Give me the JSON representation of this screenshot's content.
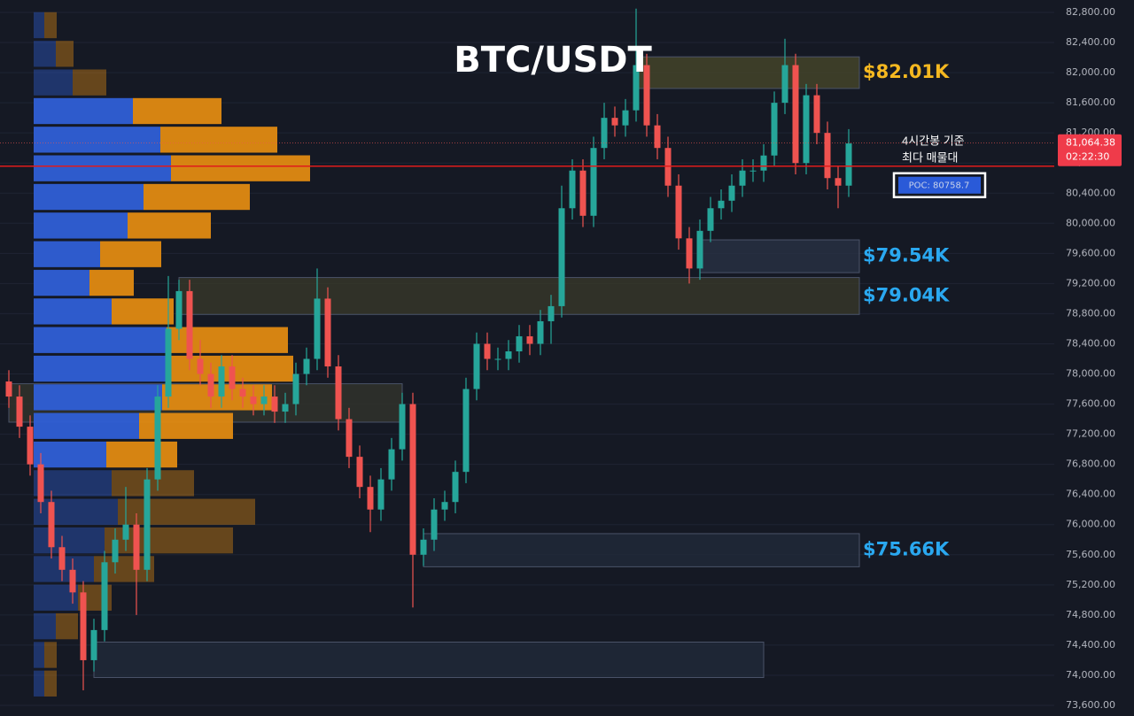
{
  "chart_data": {
    "type": "candlestick",
    "title": "BTC/USDT",
    "ylim": [
      73600,
      82800
    ],
    "yticks": [
      {
        "value": 82800,
        "label": "82,800.00"
      },
      {
        "value": 82400,
        "label": "82,400.00"
      },
      {
        "value": 82000,
        "label": "82,000.00"
      },
      {
        "value": 81600,
        "label": "81,600.00"
      },
      {
        "value": 81200,
        "label": "81,200.00"
      },
      {
        "value": 80800,
        "label": "80,800.00"
      },
      {
        "value": 80400,
        "label": "80,400.00"
      },
      {
        "value": 80000,
        "label": "80,000.00"
      },
      {
        "value": 79600,
        "label": "79,600.00"
      },
      {
        "value": 79200,
        "label": "79,200.00"
      },
      {
        "value": 78800,
        "label": "78,800.00"
      },
      {
        "value": 78400,
        "label": "78,400.00"
      },
      {
        "value": 78000,
        "label": "78,000.00"
      },
      {
        "value": 77600,
        "label": "77,600.00"
      },
      {
        "value": 77200,
        "label": "77,200.00"
      },
      {
        "value": 76800,
        "label": "76,800.00"
      },
      {
        "value": 76400,
        "label": "76,400.00"
      },
      {
        "value": 76000,
        "label": "76,000.00"
      },
      {
        "value": 75600,
        "label": "75,600.00"
      },
      {
        "value": 75200,
        "label": "75,200.00"
      },
      {
        "value": 74800,
        "label": "74,800.00"
      },
      {
        "value": 74400,
        "label": "74,400.00"
      },
      {
        "value": 74000,
        "label": "74,000.00"
      },
      {
        "value": 73600,
        "label": "73,600.00"
      }
    ],
    "grid": true,
    "up_color": "#26a69a",
    "down_color": "#ef5350",
    "open": [
      77900,
      77700,
      77300,
      76800,
      76300,
      75700,
      75400,
      75100,
      74200,
      74600,
      75500,
      75800,
      76000,
      75400,
      76600,
      77700,
      78600,
      79100,
      78200,
      78000,
      77700,
      78100,
      77800,
      77700,
      77600,
      77700,
      77500,
      77600,
      78000,
      78200,
      79000,
      78100,
      77400,
      76900,
      76500,
      76200,
      76600,
      77000,
      77600,
      75600,
      75800,
      76200,
      76300,
      76700,
      77800,
      78400,
      78200,
      78200,
      78300,
      78500,
      78400,
      78700,
      78900,
      80200,
      80700,
      80100,
      81000,
      81400,
      81300,
      81500,
      82100,
      81300,
      81000,
      80500,
      79800,
      79400,
      79900,
      80200,
      80300,
      80500,
      80700,
      80700,
      80900,
      81600,
      82100,
      80800,
      81700,
      81200,
      80600,
      80500
    ],
    "high": [
      78050,
      77850,
      77450,
      76950,
      76450,
      75850,
      75550,
      75250,
      74750,
      75650,
      75950,
      76500,
      76150,
      76750,
      77850,
      79300,
      79250,
      79250,
      78450,
      78150,
      78250,
      78250,
      77950,
      77850,
      77850,
      77850,
      77750,
      78150,
      78350,
      79400,
      79150,
      78250,
      77550,
      77050,
      76650,
      76750,
      77150,
      77750,
      77750,
      75950,
      76350,
      76450,
      76850,
      77950,
      78550,
      78550,
      78350,
      78450,
      78650,
      78650,
      78850,
      79050,
      80500,
      80850,
      80850,
      81150,
      81600,
      81550,
      81650,
      82850,
      82250,
      81450,
      81150,
      80650,
      79950,
      80050,
      80350,
      80450,
      80650,
      80850,
      80850,
      81050,
      81750,
      82450,
      82250,
      81850,
      81850,
      81350,
      80750,
      81250
    ],
    "low": [
      77550,
      77150,
      76650,
      76150,
      75550,
      75250,
      74950,
      73800,
      74050,
      74450,
      75350,
      75650,
      74800,
      75250,
      76450,
      77550,
      78450,
      78050,
      77850,
      77550,
      77550,
      77650,
      77550,
      77450,
      77450,
      77350,
      77350,
      77450,
      77850,
      78050,
      77950,
      77250,
      76750,
      76350,
      75900,
      76050,
      76450,
      76850,
      74900,
      75450,
      75650,
      76050,
      76150,
      76550,
      77650,
      78050,
      78050,
      78050,
      78150,
      78250,
      78250,
      78400,
      78750,
      80050,
      79950,
      79950,
      80850,
      81150,
      81150,
      81350,
      81150,
      80850,
      80350,
      79650,
      79200,
      79250,
      79750,
      80050,
      80150,
      80350,
      80550,
      80550,
      80750,
      81450,
      80650,
      80650,
      81050,
      80450,
      80200,
      80350
    ],
    "close": [
      77700,
      77300,
      76800,
      76300,
      75700,
      75400,
      75100,
      74200,
      74600,
      75500,
      75800,
      76000,
      75400,
      76600,
      77700,
      78600,
      79100,
      78200,
      78000,
      77700,
      78100,
      77800,
      77700,
      77600,
      77700,
      77500,
      77600,
      78000,
      78200,
      79000,
      78100,
      77400,
      76900,
      76500,
      76200,
      76600,
      77000,
      77600,
      75600,
      75800,
      76200,
      76300,
      76700,
      77800,
      78400,
      78200,
      78200,
      78300,
      78500,
      78400,
      78700,
      78900,
      80200,
      80700,
      80100,
      81000,
      81400,
      81300,
      81500,
      82100,
      81300,
      81000,
      80500,
      79800,
      79400,
      79900,
      80200,
      80300,
      80500,
      80700,
      80700,
      80900,
      81600,
      82100,
      80800,
      81700,
      81200,
      80600,
      80500,
      81060
    ],
    "volume_profile": {
      "bins": [
        82820,
        82440,
        82060,
        81680,
        81300,
        80920,
        80540,
        80160,
        79780,
        79400,
        79020,
        78640,
        78260,
        77880,
        77500,
        77120,
        76740,
        76360,
        75980,
        75600,
        75220,
        74840,
        74460,
        74080,
        73700
      ],
      "value_area_rows": [
        3,
        15
      ],
      "series": [
        {
          "name": "buy",
          "color": "#2f5fd6",
          "values": [
            12,
            25,
            44,
            112,
            143,
            155,
            124,
            106,
            75,
            63,
            88,
            150,
            155,
            145,
            119,
            82,
            88,
            95,
            80,
            68,
            50,
            25,
            12,
            12
          ]
        },
        {
          "name": "sell",
          "color": "#e08a12",
          "values": [
            14,
            20,
            38,
            100,
            132,
            157,
            120,
            94,
            69,
            50,
            70,
            137,
            138,
            124,
            106,
            80,
            93,
            155,
            145,
            68,
            38,
            25,
            14,
            14
          ]
        }
      ]
    },
    "zones": [
      {
        "label": "$82.01K",
        "top": 82210,
        "bottom": 81790,
        "start": 59,
        "end": 80,
        "color": "#f5b820",
        "fill": "#4a4a2a"
      },
      {
        "label": "$79.54K",
        "top": 79780,
        "bottom": 79345,
        "start": 65,
        "end": 80,
        "color": "#2aa8f0",
        "fill": "#2a3346"
      },
      {
        "label": "$79.04K",
        "top": 79280,
        "bottom": 78790,
        "start": 16,
        "end": 80,
        "color": "#2aa8f0",
        "fill": "#3a3a2a"
      },
      {
        "top": 77870,
        "bottom": 77360,
        "start": 0,
        "end": 37,
        "fill": "#34362c"
      },
      {
        "label": "$75.66K",
        "top": 75880,
        "bottom": 75440,
        "start": 39,
        "end": 80,
        "color": "#2aa8f0",
        "fill": "#222b3b"
      },
      {
        "top": 74440,
        "bottom": 73970,
        "start": 8,
        "end": 71,
        "fill": "#222b3b"
      }
    ],
    "poc": {
      "value": 80758.7,
      "label": "POC: 80758.7"
    },
    "annotation": [
      "4시간봉 기준",
      "최다 매물대"
    ],
    "last_price": {
      "value": 81064.38,
      "label": "81,064.38"
    },
    "countdown": "02:22:30"
  }
}
